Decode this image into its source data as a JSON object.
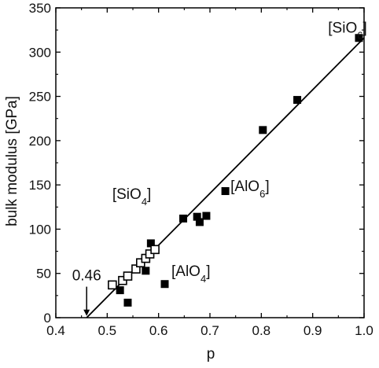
{
  "chart_data": {
    "type": "scatter",
    "xlabel": "p",
    "ylabel": "bulk modulus [GPa]",
    "xlim": [
      0.4,
      1.0
    ],
    "ylim": [
      0,
      350
    ],
    "xticks": [
      "0.4",
      "0.5",
      "0.6",
      "0.7",
      "0.8",
      "0.9",
      "1.0"
    ],
    "xtick_values": [
      0.4,
      0.5,
      0.6,
      0.7,
      0.8,
      0.9,
      1.0
    ],
    "yticks": [
      "0",
      "50",
      "100",
      "150",
      "200",
      "250",
      "300",
      "350"
    ],
    "ytick_values": [
      0,
      50,
      100,
      150,
      200,
      250,
      300,
      350
    ],
    "grid": false,
    "series": [
      {
        "marker": "filled-square",
        "color": "#000000",
        "points": [
          [
            0.525,
            31
          ],
          [
            0.54,
            17
          ],
          [
            0.575,
            53
          ],
          [
            0.585,
            84
          ],
          [
            0.612,
            38
          ],
          [
            0.648,
            112
          ],
          [
            0.675,
            114
          ],
          [
            0.68,
            108
          ],
          [
            0.693,
            115
          ],
          [
            0.73,
            143
          ],
          [
            0.803,
            212
          ],
          [
            0.87,
            246
          ],
          [
            0.99,
            316
          ]
        ]
      },
      {
        "marker": "open-square",
        "color": "#000000",
        "points": [
          [
            0.51,
            37
          ],
          [
            0.53,
            42
          ],
          [
            0.54,
            47
          ],
          [
            0.556,
            55
          ],
          [
            0.565,
            62
          ],
          [
            0.575,
            67
          ],
          [
            0.583,
            72
          ],
          [
            0.593,
            77
          ]
        ]
      }
    ],
    "fit_line": {
      "x": [
        0.46,
        1.0
      ],
      "y": [
        0,
        316
      ]
    },
    "annotations": [
      {
        "text": "[SiO",
        "sub": "6",
        "close": "]",
        "x": 0.93,
        "y": 322
      },
      {
        "text": "[AlO",
        "sub": "6",
        "close": "]",
        "x": 0.74,
        "y": 143
      },
      {
        "text": "[SiO",
        "sub": "4",
        "close": "]",
        "x": 0.51,
        "y": 134
      },
      {
        "text": "[AlO",
        "sub": "4",
        "close": "]",
        "x": 0.625,
        "y": 47
      }
    ],
    "arrow": {
      "label": "0.46",
      "x": 0.46,
      "y_from": 35,
      "y_to": 2
    }
  }
}
